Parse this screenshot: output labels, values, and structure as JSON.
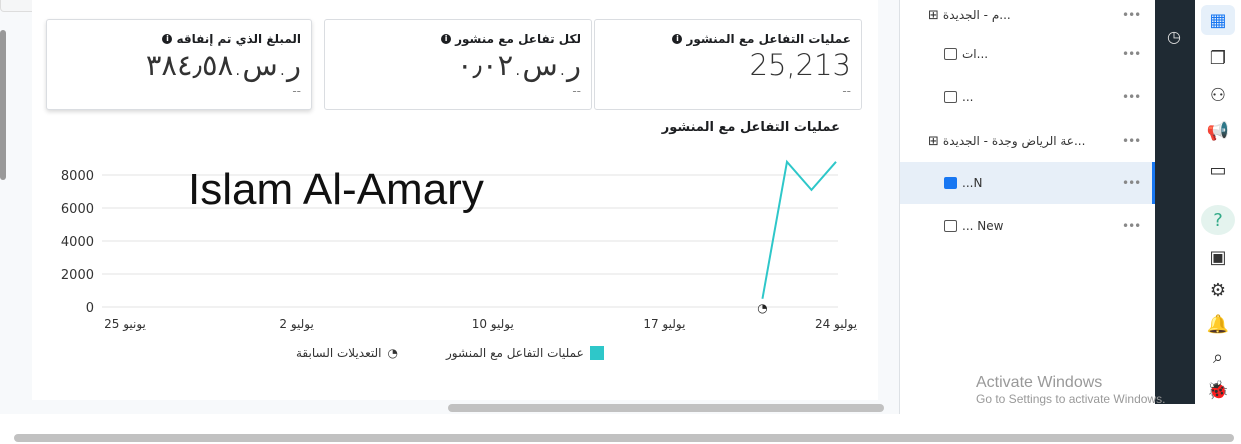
{
  "cards": [
    {
      "title": "عمليات التفاعل مع المنشور",
      "value": "25,213",
      "delta": "--"
    },
    {
      "title": "لكل تفاعل مع منشور",
      "value": "ر.س.٠٫٠٢",
      "delta": "--"
    },
    {
      "title": "المبلغ الذي تم إنفاقه",
      "value": "ر.س.٣٨٤٫٥٨",
      "delta": "--"
    }
  ],
  "overlay_text": "Islam Al-Amary",
  "chart_data": {
    "type": "line",
    "title": "عمليات التفاعل مع المنشور",
    "x": [
      "2024-07-21",
      "2024-07-22",
      "2024-07-23",
      "2024-07-24"
    ],
    "series": [
      {
        "name": "عمليات التفاعل مع المنشور",
        "values": [
          500,
          8800,
          7100,
          8800
        ],
        "color": "#2ec7c9"
      }
    ],
    "xticks": [
      "25 يونيو",
      "2 يوليو",
      "10 يوليو",
      "17 يوليو",
      "24 يوليو"
    ],
    "yticks": [
      "0",
      "2000",
      "4000",
      "6000",
      "8000"
    ],
    "ylim": [
      0,
      8800
    ],
    "grid": true,
    "annotation_marker": "2024-07-21",
    "legend": [
      "عمليات التفاعل مع المنشور",
      "التعديلات السابقة"
    ],
    "legend_position": "bottom"
  },
  "sidebar": {
    "items": [
      {
        "label": "...م - الجديدة",
        "icon": "grid-icon"
      },
      {
        "label": "...ات",
        "icon": "ad-icon"
      },
      {
        "label": "...",
        "icon": "ad-icon"
      },
      {
        "label": "...عة الرياض وجدة - الجديدة",
        "icon": "grid-icon"
      },
      {
        "label": "N...",
        "icon": "ad-icon",
        "selected": true
      },
      {
        "label": "New ...",
        "icon": "ad-icon"
      }
    ],
    "more": "•••"
  },
  "activate": {
    "title": "Activate Windows",
    "sub": "Go to Settings to activate Windows."
  }
}
